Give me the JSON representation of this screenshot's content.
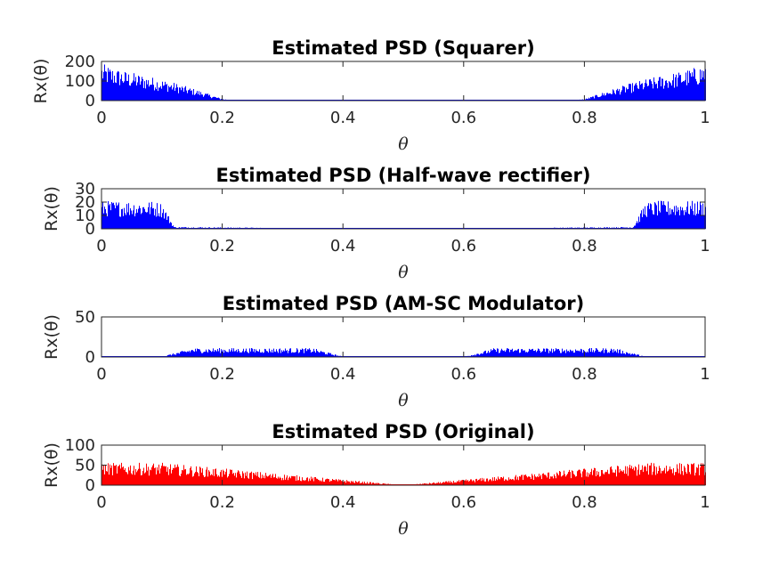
{
  "chart_data": [
    {
      "type": "bar",
      "title": "Estimated PSD (Squarer)",
      "xlabel": "θ",
      "ylabel": "Rx(θ)",
      "xlim": [
        0,
        1
      ],
      "ylim": [
        0,
        200
      ],
      "xticks": [
        "0",
        "0.2",
        "0.4",
        "0.6",
        "0.8",
        "1"
      ],
      "yticks": [
        "0",
        "100",
        "200"
      ],
      "color": "#0000ff",
      "series": [
        {
          "x": [
            0.0,
            0.02,
            0.04,
            0.06,
            0.08,
            0.1,
            0.12,
            0.14,
            0.16,
            0.18,
            0.2,
            0.22,
            0.5,
            0.78,
            0.8,
            0.82,
            0.84,
            0.86,
            0.88,
            0.9,
            0.92,
            0.94,
            0.96,
            0.98,
            1.0
          ],
          "values": [
            135,
            120,
            108,
            98,
            88,
            78,
            66,
            52,
            38,
            22,
            6,
            1,
            0,
            1,
            6,
            22,
            38,
            52,
            66,
            78,
            88,
            98,
            108,
            120,
            135
          ]
        }
      ]
    },
    {
      "type": "bar",
      "title": "Estimated PSD (Half-wave rectifier)",
      "xlabel": "θ",
      "ylabel": "Rx(θ)",
      "xlim": [
        0,
        1
      ],
      "ylim": [
        0,
        30
      ],
      "xticks": [
        "0",
        "0.2",
        "0.4",
        "0.6",
        "0.8",
        "1"
      ],
      "yticks": [
        "0",
        "10",
        "20",
        "30"
      ],
      "color": "#0000ff",
      "series": [
        {
          "x": [
            0.0,
            0.02,
            0.04,
            0.06,
            0.08,
            0.1,
            0.12,
            0.3,
            0.5,
            0.7,
            0.88,
            0.9,
            0.92,
            0.94,
            0.96,
            0.98,
            1.0
          ],
          "values": [
            15,
            15,
            15,
            15,
            15,
            14,
            1,
            0.5,
            0.3,
            0.5,
            1,
            14,
            15,
            15,
            15,
            15,
            15
          ]
        }
      ]
    },
    {
      "type": "bar",
      "title": "Estimated PSD (AM-SC Modulator)",
      "xlabel": "θ",
      "ylabel": "Rx(θ)",
      "xlim": [
        0,
        1
      ],
      "ylim": [
        0,
        50
      ],
      "xticks": [
        "0",
        "0.2",
        "0.4",
        "0.6",
        "0.8",
        "1"
      ],
      "yticks": [
        "0",
        "50"
      ],
      "color": "#0000ff",
      "series": [
        {
          "x": [
            0.0,
            0.1,
            0.15,
            0.2,
            0.25,
            0.3,
            0.35,
            0.4,
            0.5,
            0.6,
            0.65,
            0.7,
            0.75,
            0.8,
            0.85,
            0.9,
            1.0
          ],
          "values": [
            0.2,
            0.5,
            8,
            8,
            8,
            8,
            8,
            0.3,
            0.2,
            0.3,
            8,
            8,
            8,
            8,
            8,
            0.5,
            0.2
          ]
        }
      ]
    },
    {
      "type": "bar",
      "title": "Estimated PSD (Original)",
      "xlabel": "θ",
      "ylabel": "Rx(θ)",
      "xlim": [
        0,
        1
      ],
      "ylim": [
        0,
        100
      ],
      "xticks": [
        "0",
        "0.2",
        "0.4",
        "0.6",
        "0.8",
        "1"
      ],
      "yticks": [
        "0",
        "50",
        "100"
      ],
      "color": "#ff0000",
      "series": [
        {
          "x": [
            0.0,
            0.02,
            0.04,
            0.06,
            0.08,
            0.1,
            0.5,
            0.9,
            0.92,
            0.94,
            0.96,
            0.98,
            1.0
          ],
          "values": [
            40,
            40,
            40,
            40,
            40,
            40,
            0,
            40,
            40,
            40,
            40,
            40,
            40
          ]
        }
      ]
    }
  ]
}
